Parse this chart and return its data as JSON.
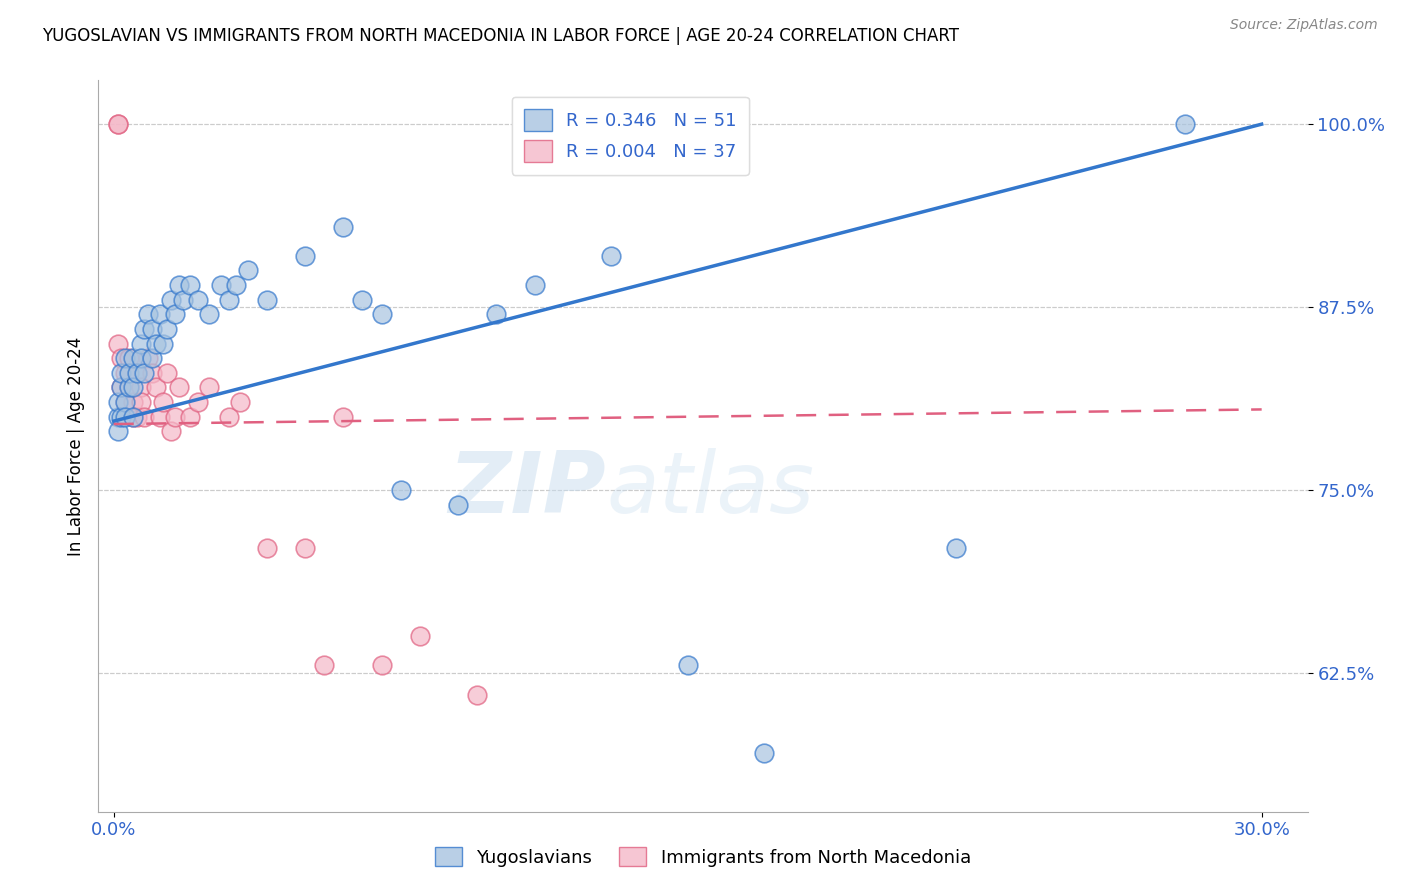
{
  "title": "YUGOSLAVIAN VS IMMIGRANTS FROM NORTH MACEDONIA IN LABOR FORCE | AGE 20-24 CORRELATION CHART",
  "source": "Source: ZipAtlas.com",
  "ylabel_values": [
    0.625,
    0.75,
    0.875,
    1.0
  ],
  "xlabel_values": [
    0.0,
    0.3
  ],
  "xmin": -0.004,
  "xmax": 0.312,
  "ymin": 0.53,
  "ymax": 1.03,
  "legend_blue_r": "R = 0.346",
  "legend_blue_n": "N = 51",
  "legend_pink_r": "R = 0.004",
  "legend_pink_n": "N = 37",
  "legend_label_blue": "Yugoslavians",
  "legend_label_pink": "Immigrants from North Macedonia",
  "blue_color": "#A8C4E0",
  "pink_color": "#F4B8C8",
  "blue_line_color": "#3377CC",
  "pink_line_color": "#E06080",
  "axis_label_color": "#3366CC",
  "watermark_zip": "ZIP",
  "watermark_atlas": "atlas",
  "blue_line_x": [
    0.0,
    0.3
  ],
  "blue_line_y": [
    0.797,
    1.0
  ],
  "pink_line_x": [
    0.0,
    0.3
  ],
  "pink_line_y": [
    0.795,
    0.805
  ],
  "blue_x": [
    0.001,
    0.001,
    0.001,
    0.002,
    0.002,
    0.002,
    0.003,
    0.003,
    0.003,
    0.004,
    0.004,
    0.005,
    0.005,
    0.005,
    0.006,
    0.007,
    0.007,
    0.008,
    0.008,
    0.009,
    0.01,
    0.01,
    0.011,
    0.012,
    0.013,
    0.014,
    0.015,
    0.016,
    0.017,
    0.018,
    0.02,
    0.022,
    0.025,
    0.028,
    0.03,
    0.032,
    0.035,
    0.04,
    0.05,
    0.06,
    0.065,
    0.07,
    0.075,
    0.09,
    0.1,
    0.11,
    0.13,
    0.15,
    0.17,
    0.22,
    0.28
  ],
  "blue_y": [
    0.8,
    0.81,
    0.79,
    0.82,
    0.8,
    0.83,
    0.81,
    0.84,
    0.8,
    0.82,
    0.83,
    0.8,
    0.82,
    0.84,
    0.83,
    0.85,
    0.84,
    0.83,
    0.86,
    0.87,
    0.84,
    0.86,
    0.85,
    0.87,
    0.85,
    0.86,
    0.88,
    0.87,
    0.89,
    0.88,
    0.89,
    0.88,
    0.87,
    0.89,
    0.88,
    0.89,
    0.9,
    0.88,
    0.91,
    0.93,
    0.88,
    0.87,
    0.75,
    0.74,
    0.87,
    0.89,
    0.91,
    0.63,
    0.57,
    0.71,
    1.0
  ],
  "pink_x": [
    0.001,
    0.001,
    0.001,
    0.002,
    0.002,
    0.003,
    0.003,
    0.004,
    0.004,
    0.005,
    0.005,
    0.006,
    0.006,
    0.007,
    0.007,
    0.008,
    0.009,
    0.01,
    0.011,
    0.012,
    0.013,
    0.014,
    0.015,
    0.016,
    0.017,
    0.02,
    0.022,
    0.025,
    0.03,
    0.033,
    0.04,
    0.05,
    0.055,
    0.06,
    0.07,
    0.08,
    0.095
  ],
  "pink_y": [
    1.0,
    1.0,
    0.85,
    0.82,
    0.84,
    0.83,
    0.81,
    0.82,
    0.84,
    0.8,
    0.81,
    0.83,
    0.8,
    0.82,
    0.81,
    0.8,
    0.84,
    0.83,
    0.82,
    0.8,
    0.81,
    0.83,
    0.79,
    0.8,
    0.82,
    0.8,
    0.81,
    0.82,
    0.8,
    0.81,
    0.71,
    0.71,
    0.63,
    0.8,
    0.63,
    0.65,
    0.61
  ]
}
